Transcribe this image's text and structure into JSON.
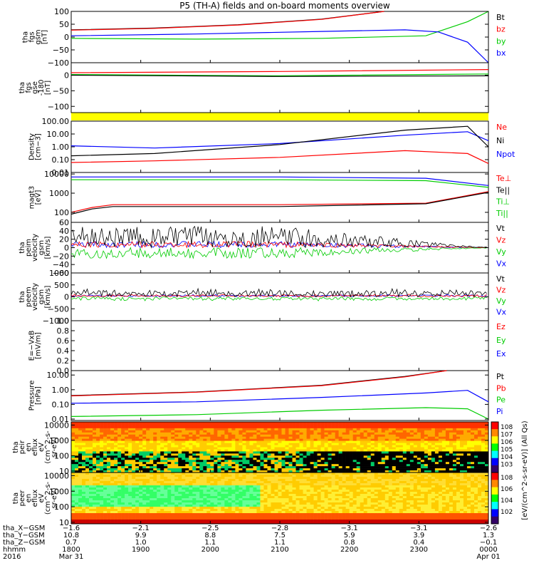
{
  "title": "P5 (TH-A) fields and on-board moments overview",
  "colors": {
    "black": "#000000",
    "red": "#ff0000",
    "green": "#00cc00",
    "blue": "#0000ff",
    "yellow": "#ffff00"
  },
  "chart_data": [
    {
      "type": "line",
      "ylabel": [
        "tha",
        "fgs",
        "gsm",
        "[nT]"
      ],
      "ylim": [
        -100,
        100
      ],
      "yticks": [
        "100",
        "50",
        "0",
        "−50",
        "−100"
      ],
      "legend": [
        "Bt",
        "bz",
        "by",
        "bx"
      ],
      "series": [
        {
          "name": "Bt",
          "values": [
            [
              0,
              28
            ],
            [
              0.2,
              35
            ],
            [
              0.4,
              48
            ],
            [
              0.6,
              70
            ],
            [
              0.75,
              100
            ]
          ]
        },
        {
          "name": "bz",
          "values": [
            [
              0,
              27
            ],
            [
              0.2,
              34
            ],
            [
              0.4,
              47
            ],
            [
              0.6,
              69
            ],
            [
              0.75,
              100
            ]
          ]
        },
        {
          "name": "by",
          "values": [
            [
              0,
              -5
            ],
            [
              0.3,
              -8
            ],
            [
              0.6,
              -5
            ],
            [
              0.85,
              5
            ],
            [
              0.95,
              60
            ],
            [
              1,
              100
            ]
          ]
        },
        {
          "name": "bx",
          "values": [
            [
              0,
              5
            ],
            [
              0.3,
              12
            ],
            [
              0.6,
              22
            ],
            [
              0.8,
              28
            ],
            [
              0.88,
              20
            ],
            [
              0.95,
              -20
            ],
            [
              1,
              -100
            ]
          ]
        }
      ]
    },
    {
      "type": "line",
      "ylabel": [
        "tha",
        "fgs",
        "gse",
        "-180",
        "[nT]"
      ],
      "ylim": [
        -120,
        40
      ],
      "yticks": [
        "0",
        "−50",
        "−100"
      ],
      "series": [
        {
          "name": "red",
          "values": [
            [
              0,
              8
            ],
            [
              0.5,
              12
            ],
            [
              1,
              18
            ]
          ]
        },
        {
          "name": "green",
          "values": [
            [
              0,
              2
            ],
            [
              0.5,
              -2
            ],
            [
              1,
              4
            ]
          ]
        },
        {
          "name": "black",
          "values": [
            [
              0,
              0
            ],
            [
              0.5,
              -4
            ],
            [
              1,
              -2
            ]
          ]
        }
      ]
    },
    {
      "type": "line",
      "ylabel": [
        "Density",
        "[cm−3]"
      ],
      "scale": "log",
      "ylim": [
        0.01,
        100
      ],
      "yticks": [
        "100.00",
        "10.00",
        "1.00",
        "0.10",
        "0.01"
      ],
      "legend": [
        "Ne",
        "Ni",
        "Npot"
      ],
      "series": [
        {
          "name": "Ne",
          "values": [
            [
              0,
              0.06
            ],
            [
              0.2,
              0.08
            ],
            [
              0.5,
              0.15
            ],
            [
              0.8,
              0.5
            ],
            [
              0.95,
              0.3
            ],
            [
              1,
              0.05
            ]
          ]
        },
        {
          "name": "Ni",
          "values": [
            [
              0,
              1.2
            ],
            [
              0.2,
              0.8
            ],
            [
              0.5,
              1.8
            ],
            [
              0.8,
              8
            ],
            [
              0.95,
              15
            ],
            [
              1,
              3
            ]
          ]
        },
        {
          "name": "Npot",
          "values": [
            [
              0,
              0.2
            ],
            [
              0.2,
              0.3
            ],
            [
              0.5,
              1.5
            ],
            [
              0.8,
              20
            ],
            [
              0.95,
              40
            ],
            [
              1,
              1
            ]
          ]
        }
      ]
    },
    {
      "type": "line",
      "ylabel": [
        "magt3",
        "[eV]"
      ],
      "scale": "log",
      "ylim": [
        30,
        12000
      ],
      "yticks": [
        "10000",
        "1000",
        "100"
      ],
      "legend": [
        "Te⊥",
        "Te||",
        "Ti⊥",
        "Ti||"
      ],
      "series": [
        {
          "name": "Te⊥",
          "values": [
            [
              0,
              100
            ],
            [
              0.05,
              180
            ],
            [
              0.1,
              250
            ],
            [
              0.5,
              250
            ],
            [
              0.85,
              300
            ],
            [
              1,
              1200
            ]
          ]
        },
        {
          "name": "Te||",
          "values": [
            [
              0,
              80
            ],
            [
              0.05,
              150
            ],
            [
              0.1,
              200
            ],
            [
              0.5,
              200
            ],
            [
              0.85,
              280
            ],
            [
              1,
              1100
            ]
          ]
        },
        {
          "name": "Ti⊥",
          "values": [
            [
              0,
              7000
            ],
            [
              0.5,
              7000
            ],
            [
              0.85,
              6000
            ],
            [
              1,
              2500
            ]
          ]
        },
        {
          "name": "Ti||",
          "values": [
            [
              0,
              5000
            ],
            [
              0.5,
              5000
            ],
            [
              0.85,
              4500
            ],
            [
              1,
              2000
            ]
          ]
        }
      ]
    },
    {
      "type": "line",
      "ylabel": [
        "tha",
        "peim",
        "velocity",
        "gsm",
        "[km/s]"
      ],
      "ylim": [
        -60,
        60
      ],
      "yticks": [
        "60",
        "40",
        "20",
        "0",
        "−20",
        "−40",
        "−60"
      ],
      "legend": [
        "Vt",
        "Vz",
        "Vy",
        "Vx"
      ]
    },
    {
      "type": "line",
      "ylabel": [
        "tha",
        "peem",
        "velocity",
        "gsm",
        "[km/s]"
      ],
      "ylim": [
        -1000,
        1000
      ],
      "yticks": [
        "1000",
        "500",
        "0",
        "−500",
        "−1000"
      ],
      "legend": [
        "Vt",
        "Vz",
        "Vy",
        "Vx"
      ]
    },
    {
      "type": "line",
      "ylabel": [
        "E=−VxB",
        "[mV/m]"
      ],
      "ylim": [
        0,
        1
      ],
      "yticks": [
        "1.0",
        "0.8",
        "0.6",
        "0.4",
        "0.2",
        "0.0"
      ],
      "legend": [
        "Ez",
        "Ey",
        "Ex"
      ]
    },
    {
      "type": "line",
      "ylabel": [
        "Pressure",
        "[nPa]"
      ],
      "scale": "log",
      "ylim": [
        0.008,
        20
      ],
      "yticks": [
        "10.00",
        "1.00",
        "0.10",
        "0.01"
      ],
      "legend": [
        "Pt",
        "Pb",
        "Pe",
        "Pi"
      ],
      "series": [
        {
          "name": "Pt",
          "values": [
            [
              0,
              0.4
            ],
            [
              0.3,
              0.7
            ],
            [
              0.6,
              2
            ],
            [
              0.8,
              8
            ],
            [
              0.9,
              20
            ]
          ]
        },
        {
          "name": "Pb",
          "values": [
            [
              0,
              0.38
            ],
            [
              0.3,
              0.68
            ],
            [
              0.6,
              1.9
            ],
            [
              0.8,
              7.5
            ],
            [
              0.9,
              20
            ]
          ]
        },
        {
          "name": "Pe",
          "values": [
            [
              0,
              0.12
            ],
            [
              0.3,
              0.15
            ],
            [
              0.6,
              0.3
            ],
            [
              0.85,
              0.6
            ],
            [
              0.95,
              0.9
            ],
            [
              1,
              0.15
            ]
          ]
        },
        {
          "name": "Pi",
          "values": [
            [
              0,
              0.015
            ],
            [
              0.3,
              0.02
            ],
            [
              0.6,
              0.04
            ],
            [
              0.85,
              0.06
            ],
            [
              0.95,
              0.05
            ],
            [
              1,
              0.01
            ]
          ]
        }
      ]
    },
    {
      "type": "heatmap",
      "ylabel": [
        "tha",
        "peir",
        "en",
        "eflux",
        "eV",
        "(cm^2-s-",
        "sr-eV)"
      ],
      "scale": "log",
      "ylim": [
        8,
        16000
      ],
      "yticks": [
        "10000",
        "1000",
        "100",
        "10"
      ],
      "colorbar": [
        "10^8",
        "10^7",
        "10^6",
        "10^5",
        "10^4",
        "10^3"
      ]
    },
    {
      "type": "heatmap",
      "ylabel": [
        "tha",
        "peer",
        "en",
        "eflux",
        "eV",
        "(cm^2-s-",
        "sr-eV)"
      ],
      "scale": "log",
      "ylim": [
        8,
        16000
      ],
      "yticks": [
        "10000",
        "1000",
        "100",
        "10"
      ],
      "colorbar": [
        "10^8",
        "10^6",
        "10^4",
        "10^2"
      ]
    }
  ],
  "colorbar_label": "[eV/(cm^2-s-sr-eV)] (All Qs)",
  "footer": {
    "row_labels": [
      "tha_X−GSM",
      "tha_Y−GSM",
      "tha_Z−GSM",
      "hhmm",
      "2016"
    ],
    "columns": [
      [
        "−1.6",
        "10.8",
        "0.7",
        "1800",
        "Mar 31"
      ],
      [
        "−2.1",
        "9.9",
        "1.0",
        "1900",
        ""
      ],
      [
        "−2.5",
        "8.8",
        "1.1",
        "2000",
        ""
      ],
      [
        "−2.8",
        "7.5",
        "1.1",
        "2100",
        ""
      ],
      [
        "−3.1",
        "5.9",
        "0.8",
        "2200",
        ""
      ],
      [
        "−3.1",
        "3.9",
        "0.4",
        "2300",
        ""
      ],
      [
        "−2.6",
        "1.3",
        "−0.1",
        "0000",
        "Apr 01"
      ]
    ]
  }
}
